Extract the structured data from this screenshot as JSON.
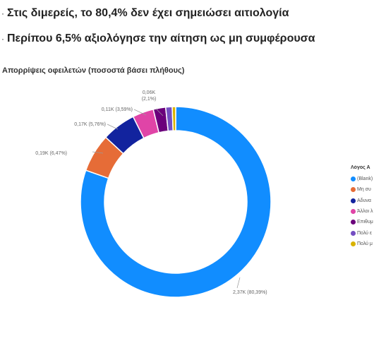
{
  "bullets": [
    {
      "marker": "·",
      "text": "Στις διμερείς, το 80,4% δεν έχει σημειώσει αιτιολογία"
    },
    {
      "marker": "·",
      "text": "Περίπου 6,5% αξιολόγησε την αίτηση ως μη συμφέρουσα"
    }
  ],
  "chart_data": {
    "type": "pie",
    "donut": true,
    "title": "Απορρίψεις οφειλετών (ποσοστά βάσει πλήθους)",
    "legend_title": "Λόγος Α",
    "legend_position": "right",
    "slices": [
      {
        "label": "(Blank)",
        "value": 2.37,
        "percent": 80.39,
        "data_label": "2,37K (80,39%)",
        "color": "#118DFF"
      },
      {
        "label": "Μη συ",
        "value": 0.19,
        "percent": 6.47,
        "data_label": "0,19K (6,47%)",
        "color": "#E66C37"
      },
      {
        "label": "Αδυνα",
        "value": 0.17,
        "percent": 5.76,
        "data_label": "0,17K (5,76%)",
        "color": "#12239E"
      },
      {
        "label": "Άλλοι λ",
        "value": 0.11,
        "percent": 3.59,
        "data_label": "0,11K (3,59%)",
        "color": "#E044A7"
      },
      {
        "label": "Επιθυμ",
        "value": 0.06,
        "percent": 2.1,
        "data_label": "0,06K\n(2,1%)",
        "color": "#6B007B"
      },
      {
        "label": "Πολύ ε",
        "value": 0.03,
        "percent": 1.1,
        "data_label": "",
        "color": "#744EC2"
      },
      {
        "label": "Πολύ μ",
        "value": 0.02,
        "percent": 0.59,
        "data_label": "",
        "color": "#D9B300"
      }
    ]
  }
}
